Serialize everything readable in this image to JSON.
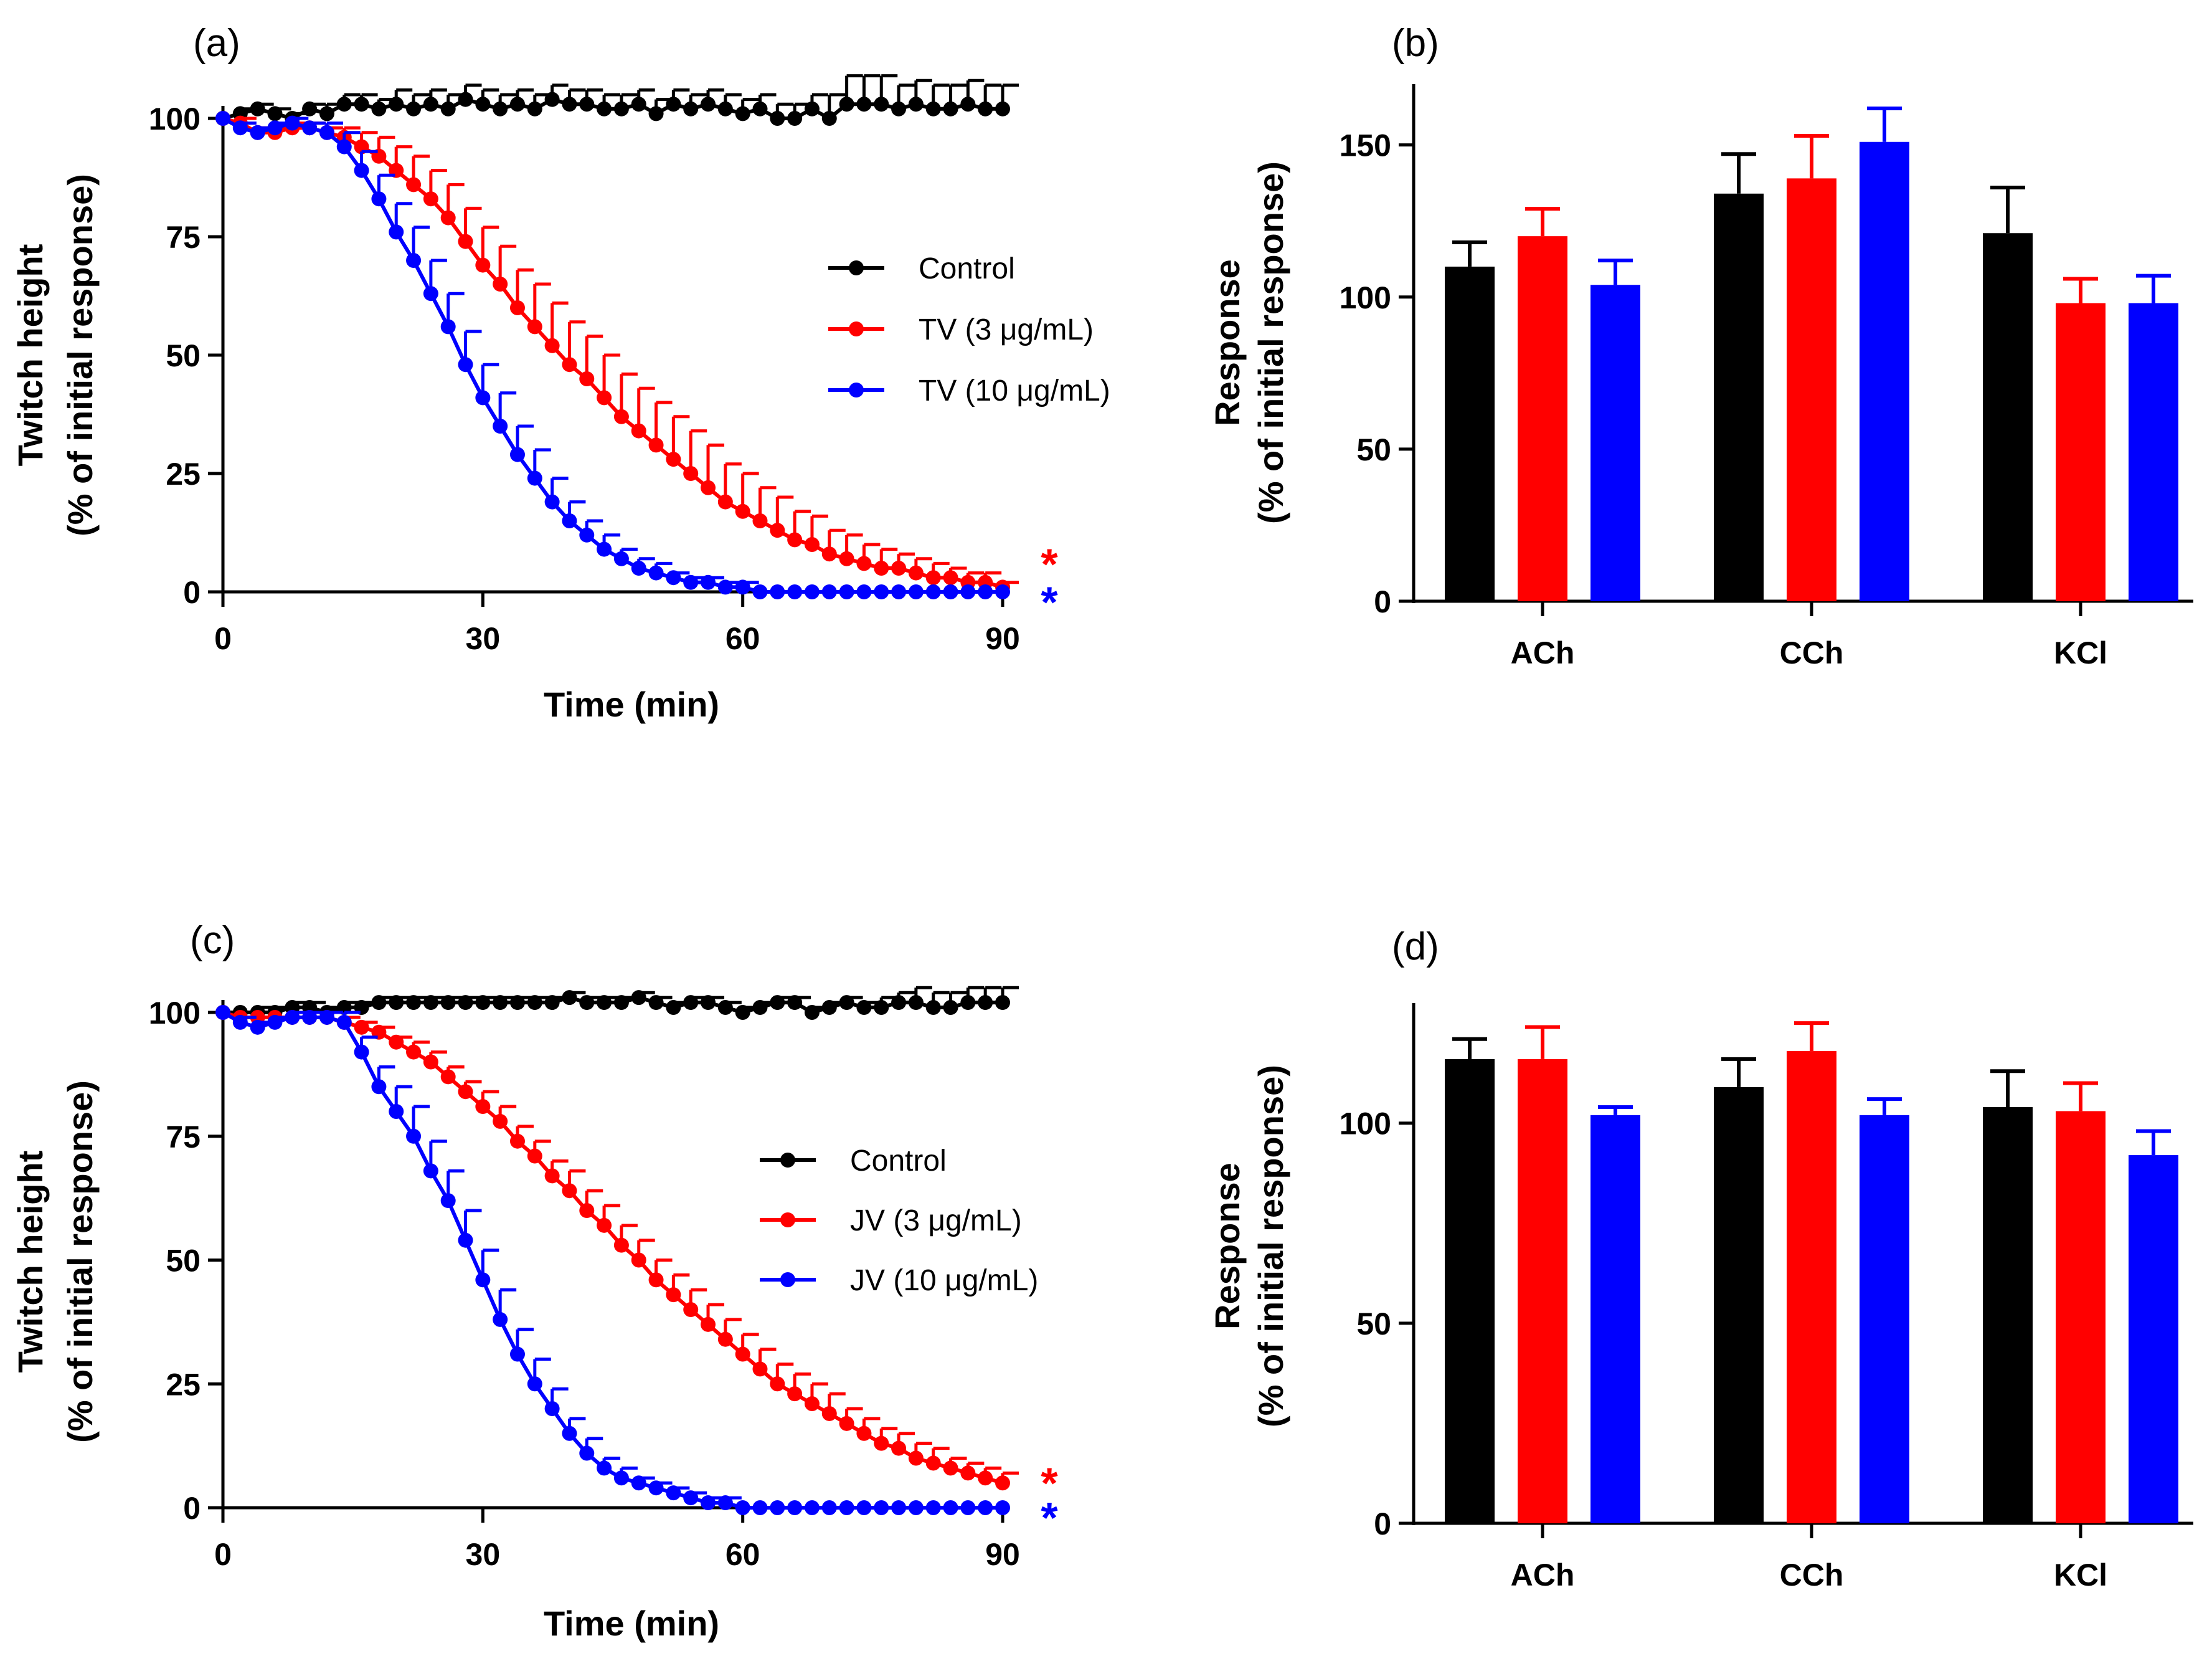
{
  "colors": {
    "control": "#000000",
    "low": "#ff0000",
    "high": "#0000ff"
  },
  "chart_data": [
    {
      "panel": "(a)",
      "type": "line",
      "xlabel": "Time (min)",
      "ylabel": [
        "Twitch height",
        "(% of initial response)"
      ],
      "xlim": [
        0,
        90
      ],
      "ylim": [
        0,
        100
      ],
      "xticks": [
        0,
        30,
        60,
        90
      ],
      "yticks": [
        0,
        25,
        50,
        75,
        100
      ],
      "x": [
        0,
        2,
        4,
        6,
        8,
        10,
        12,
        14,
        16,
        18,
        20,
        22,
        24,
        26,
        28,
        30,
        32,
        34,
        36,
        38,
        40,
        42,
        44,
        46,
        48,
        50,
        52,
        54,
        56,
        58,
        60,
        62,
        64,
        66,
        68,
        70,
        72,
        74,
        76,
        78,
        80,
        82,
        84,
        86,
        88,
        90
      ],
      "legend": [
        "Control",
        "TV (3 μg/mL)",
        "TV (10 μg/mL)"
      ],
      "series": [
        {
          "name": "Control",
          "color": "control",
          "values": [
            100,
            101,
            102,
            101,
            100,
            102,
            101,
            103,
            103,
            102,
            103,
            102,
            103,
            102,
            104,
            103,
            102,
            103,
            102,
            104,
            103,
            103,
            102,
            102,
            103,
            101,
            103,
            102,
            103,
            102,
            101,
            102,
            100,
            100,
            102,
            100,
            103,
            103,
            103,
            102,
            103,
            102,
            102,
            103,
            102,
            102
          ],
          "error": [
            0,
            1,
            1,
            1,
            1,
            1,
            2,
            2,
            2,
            2,
            3,
            3,
            3,
            3,
            3,
            3,
            3,
            3,
            3,
            3,
            3,
            3,
            3,
            3,
            3,
            3,
            3,
            3,
            3,
            3,
            3,
            3,
            3,
            3,
            3,
            5,
            6,
            6,
            6,
            5,
            5,
            5,
            5,
            5,
            5,
            5
          ]
        },
        {
          "name": "TV (3 μg/mL)",
          "color": "low",
          "values": [
            100,
            99,
            97,
            97,
            98,
            98,
            97,
            96,
            94,
            92,
            89,
            86,
            83,
            79,
            74,
            69,
            65,
            60,
            56,
            52,
            48,
            45,
            41,
            37,
            34,
            31,
            28,
            25,
            22,
            19,
            17,
            15,
            13,
            11,
            10,
            8,
            7,
            6,
            5,
            5,
            4,
            3,
            3,
            2,
            2,
            1
          ],
          "error": [
            0,
            1,
            1,
            1,
            1,
            1,
            1,
            2,
            3,
            4,
            5,
            6,
            6,
            7,
            7,
            8,
            8,
            8,
            9,
            9,
            9,
            9,
            9,
            9,
            9,
            9,
            9,
            9,
            9,
            8,
            8,
            7,
            7,
            6,
            6,
            5,
            5,
            4,
            4,
            3,
            3,
            3,
            2,
            2,
            2,
            1
          ]
        },
        {
          "name": "TV (10 μg/mL)",
          "color": "high",
          "values": [
            100,
            98,
            97,
            98,
            99,
            98,
            97,
            94,
            89,
            83,
            76,
            70,
            63,
            56,
            48,
            41,
            35,
            29,
            24,
            19,
            15,
            12,
            9,
            7,
            5,
            4,
            3,
            2,
            2,
            1,
            1,
            0,
            0,
            0,
            0,
            0,
            0,
            0,
            0,
            0,
            0,
            0,
            0,
            0,
            0,
            0
          ],
          "error": [
            0,
            1,
            1,
            1,
            1,
            1,
            2,
            3,
            4,
            5,
            6,
            7,
            7,
            7,
            7,
            7,
            7,
            6,
            6,
            5,
            4,
            3,
            3,
            2,
            2,
            2,
            1,
            1,
            1,
            1,
            1,
            0,
            0,
            0,
            0,
            0,
            0,
            0,
            0,
            0,
            0,
            0,
            0,
            0,
            0,
            0
          ]
        }
      ],
      "annotations": [
        {
          "text": "*",
          "color": "low",
          "y": 9
        },
        {
          "text": "*",
          "color": "high",
          "y": 1
        }
      ]
    },
    {
      "panel": "(b)",
      "type": "bar",
      "xlabel": "",
      "ylabel": [
        "Response",
        "(% of initial response)"
      ],
      "ylim": [
        0,
        170
      ],
      "yticks": [
        0,
        50,
        100,
        150
      ],
      "categories": [
        "ACh",
        "CCh",
        "KCl"
      ],
      "series": [
        {
          "name": "Control",
          "color": "control",
          "values": [
            110,
            134,
            121
          ],
          "error": [
            8,
            13,
            15
          ]
        },
        {
          "name": "TV (3 μg/mL)",
          "color": "low",
          "values": [
            120,
            139,
            98
          ],
          "error": [
            9,
            14,
            8
          ]
        },
        {
          "name": "TV (10 μg/mL)",
          "color": "high",
          "values": [
            104,
            151,
            98
          ],
          "error": [
            8,
            11,
            9
          ]
        }
      ]
    },
    {
      "panel": "(c)",
      "type": "line",
      "xlabel": "Time (min)",
      "ylabel": [
        "Twitch height",
        "(% of initial response)"
      ],
      "xlim": [
        0,
        90
      ],
      "ylim": [
        0,
        100
      ],
      "xticks": [
        0,
        30,
        60,
        90
      ],
      "yticks": [
        0,
        25,
        50,
        75,
        100
      ],
      "x": [
        0,
        2,
        4,
        6,
        8,
        10,
        12,
        14,
        16,
        18,
        20,
        22,
        24,
        26,
        28,
        30,
        32,
        34,
        36,
        38,
        40,
        42,
        44,
        46,
        48,
        50,
        52,
        54,
        56,
        58,
        60,
        62,
        64,
        66,
        68,
        70,
        72,
        74,
        76,
        78,
        80,
        82,
        84,
        86,
        88,
        90
      ],
      "legend": [
        "Control",
        "JV (3 μg/mL)",
        "JV (10 μg/mL)"
      ],
      "series": [
        {
          "name": "Control",
          "color": "control",
          "values": [
            100,
            100,
            100,
            100,
            101,
            101,
            100,
            101,
            101,
            102,
            102,
            102,
            102,
            102,
            102,
            102,
            102,
            102,
            102,
            102,
            103,
            102,
            102,
            102,
            103,
            102,
            101,
            102,
            102,
            101,
            100,
            101,
            102,
            102,
            100,
            101,
            102,
            101,
            101,
            102,
            102,
            101,
            101,
            102,
            102,
            102
          ],
          "error": [
            0,
            0,
            1,
            1,
            1,
            1,
            1,
            1,
            1,
            1,
            1,
            1,
            1,
            1,
            1,
            1,
            1,
            1,
            1,
            1,
            1,
            1,
            1,
            1,
            1,
            1,
            1,
            1,
            1,
            1,
            1,
            1,
            1,
            1,
            1,
            1,
            1,
            1,
            2,
            2,
            3,
            3,
            3,
            3,
            3,
            3
          ]
        },
        {
          "name": "JV (3 μg/mL)",
          "color": "low",
          "values": [
            100,
            99,
            99,
            99,
            99,
            99,
            99,
            98,
            97,
            96,
            94,
            92,
            90,
            87,
            84,
            81,
            78,
            74,
            71,
            67,
            64,
            60,
            57,
            53,
            50,
            46,
            43,
            40,
            37,
            34,
            31,
            28,
            25,
            23,
            21,
            19,
            17,
            15,
            13,
            12,
            10,
            9,
            8,
            7,
            6,
            5
          ],
          "error": [
            0,
            0,
            0,
            0,
            0,
            1,
            1,
            1,
            1,
            1,
            1,
            2,
            2,
            2,
            2,
            3,
            3,
            3,
            3,
            3,
            4,
            4,
            4,
            4,
            4,
            4,
            4,
            4,
            4,
            4,
            4,
            4,
            4,
            4,
            4,
            4,
            3,
            3,
            3,
            3,
            3,
            3,
            2,
            2,
            2,
            2
          ]
        },
        {
          "name": "JV (10 μg/mL)",
          "color": "high",
          "values": [
            100,
            98,
            97,
            98,
            99,
            99,
            99,
            98,
            92,
            85,
            80,
            75,
            68,
            62,
            54,
            46,
            38,
            31,
            25,
            20,
            15,
            11,
            8,
            6,
            5,
            4,
            3,
            2,
            1,
            1,
            0,
            0,
            0,
            0,
            0,
            0,
            0,
            0,
            0,
            0,
            0,
            0,
            0,
            0,
            0,
            0
          ],
          "error": [
            0,
            1,
            1,
            1,
            1,
            1,
            1,
            2,
            3,
            4,
            5,
            6,
            6,
            6,
            6,
            6,
            6,
            5,
            5,
            4,
            3,
            3,
            2,
            2,
            1,
            1,
            1,
            1,
            1,
            1,
            0,
            0,
            0,
            0,
            0,
            0,
            0,
            0,
            0,
            0,
            0,
            0,
            0,
            0,
            0,
            0
          ]
        }
      ],
      "annotations": [
        {
          "text": "*",
          "color": "low",
          "y": 8
        },
        {
          "text": "*",
          "color": "high",
          "y": 1
        }
      ]
    },
    {
      "panel": "(d)",
      "type": "bar",
      "xlabel": "",
      "ylabel": [
        "Response",
        "(% of initial response)"
      ],
      "ylim": [
        0,
        130
      ],
      "yticks": [
        0,
        50,
        100
      ],
      "categories": [
        "ACh",
        "CCh",
        "KCl"
      ],
      "series": [
        {
          "name": "Control",
          "color": "control",
          "values": [
            116,
            109,
            104
          ],
          "error": [
            5,
            7,
            9
          ]
        },
        {
          "name": "JV (3 μg/mL)",
          "color": "low",
          "values": [
            116,
            118,
            103
          ],
          "error": [
            8,
            7,
            7
          ]
        },
        {
          "name": "JV (10 μg/mL)",
          "color": "high",
          "values": [
            102,
            102,
            92
          ],
          "error": [
            2,
            4,
            6
          ]
        }
      ]
    }
  ]
}
